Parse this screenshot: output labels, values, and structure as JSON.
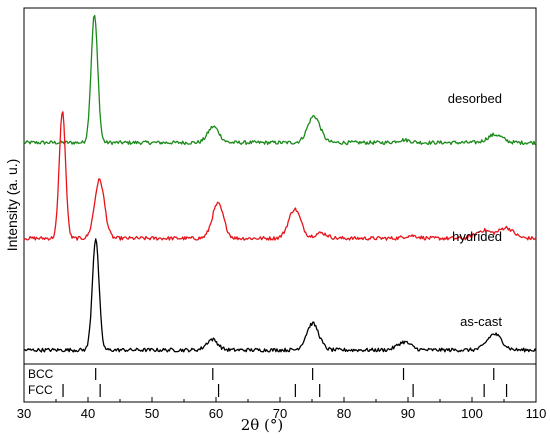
{
  "chart_data": {
    "type": "line",
    "xlabel": "2θ (°)",
    "ylabel": "Intensity (a. u.)",
    "xlim": [
      30,
      110
    ],
    "x_ticks": [
      30,
      40,
      50,
      60,
      70,
      80,
      90,
      100,
      110
    ],
    "grid": false,
    "series": [
      {
        "name": "desorbed",
        "color": "#1a8a1a",
        "baseline": 0.78,
        "peaks": [
          {
            "x": 41.0,
            "height": 0.48
          },
          {
            "x": 59.6,
            "height": 0.06
          },
          {
            "x": 75.3,
            "height": 0.1
          },
          {
            "x": 89.3,
            "height": 0.01
          },
          {
            "x": 103.6,
            "height": 0.03
          }
        ]
      },
      {
        "name": "hydrided",
        "color": "#e8141a",
        "baseline": 0.42,
        "peaks": [
          {
            "x": 36.0,
            "height": 0.48
          },
          {
            "x": 41.8,
            "height": 0.22
          },
          {
            "x": 60.3,
            "height": 0.13
          },
          {
            "x": 72.3,
            "height": 0.11
          },
          {
            "x": 76.4,
            "height": 0.02
          },
          {
            "x": 90.5,
            "height": 0.01
          },
          {
            "x": 101.8,
            "height": 0.03
          },
          {
            "x": 105.3,
            "height": 0.04
          }
        ]
      },
      {
        "name": "as-cast",
        "color": "#000000",
        "baseline": 0.0,
        "peaks": [
          {
            "x": 41.2,
            "height": 0.42
          },
          {
            "x": 59.4,
            "height": 0.04
          },
          {
            "x": 75.1,
            "height": 0.1
          },
          {
            "x": 89.4,
            "height": 0.03
          },
          {
            "x": 103.5,
            "height": 0.06
          }
        ]
      }
    ],
    "reference_lines": [
      {
        "name": "BCC",
        "positions": [
          41.2,
          59.5,
          75.1,
          89.3,
          103.4
        ]
      },
      {
        "name": "FCC",
        "positions": [
          36.1,
          41.9,
          60.4,
          72.4,
          76.2,
          90.8,
          101.9,
          105.4
        ]
      }
    ]
  }
}
